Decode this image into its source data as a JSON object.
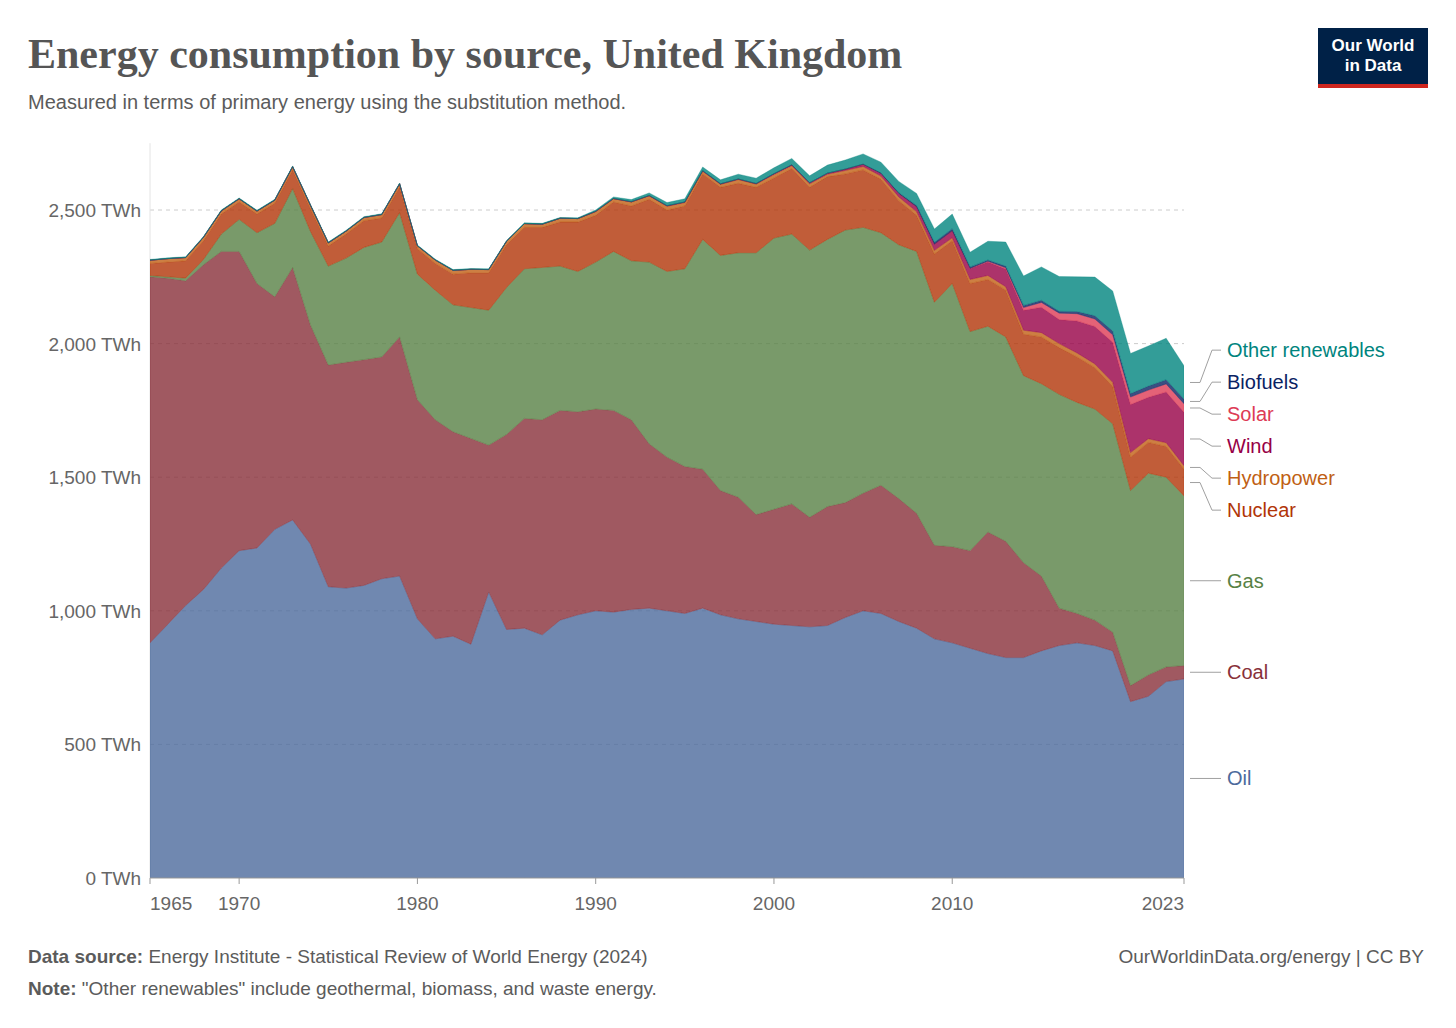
{
  "chart_data": {
    "type": "area",
    "title": "Energy consumption by source, United Kingdom",
    "subtitle": "Measured in terms of primary energy using the substitution method.",
    "source_label": "Data source:",
    "source": "Energy Institute - Statistical Review of World Energy (2024)",
    "note_label": "Note:",
    "note": "\"Other renewables\" include geothermal, biomass, and waste energy.",
    "credit": "OurWorldinData.org/energy | CC BY",
    "logo": "Our World in Data",
    "stacked": true,
    "grid": true,
    "legend": "right",
    "x": [
      1965,
      1966,
      1967,
      1968,
      1969,
      1970,
      1971,
      1972,
      1973,
      1974,
      1975,
      1976,
      1977,
      1978,
      1979,
      1980,
      1981,
      1982,
      1983,
      1984,
      1985,
      1986,
      1987,
      1988,
      1989,
      1990,
      1991,
      1992,
      1993,
      1994,
      1995,
      1996,
      1997,
      1998,
      1999,
      2000,
      2001,
      2002,
      2003,
      2004,
      2005,
      2006,
      2007,
      2008,
      2009,
      2010,
      2011,
      2012,
      2013,
      2014,
      2015,
      2016,
      2017,
      2018,
      2019,
      2020,
      2021,
      2022,
      2023
    ],
    "xlim": [
      1965,
      2023
    ],
    "xticks": [
      1965,
      1970,
      1980,
      1990,
      2000,
      2010,
      2023
    ],
    "ylim": [
      0,
      2750
    ],
    "yticks": [
      {
        "value": 0,
        "label": "0 TWh"
      },
      {
        "value": 500,
        "label": "500 TWh"
      },
      {
        "value": 1000,
        "label": "1,000 TWh"
      },
      {
        "value": 1500,
        "label": "1,500 TWh"
      },
      {
        "value": 2000,
        "label": "2,000 TWh"
      },
      {
        "value": 2500,
        "label": "2,500 TWh"
      }
    ],
    "series": [
      {
        "name": "Oil",
        "color": "#4C6A9C",
        "values": [
          880,
          950,
          1020,
          1080,
          1160,
          1225,
          1235,
          1305,
          1340,
          1250,
          1090,
          1085,
          1095,
          1120,
          1130,
          970,
          895,
          905,
          875,
          1070,
          930,
          935,
          910,
          965,
          985,
          1000,
          995,
          1005,
          1010,
          1000,
          990,
          1010,
          985,
          970,
          960,
          950,
          945,
          940,
          945,
          975,
          1000,
          990,
          960,
          935,
          895,
          880,
          860,
          840,
          825,
          825,
          850,
          870,
          880,
          870,
          850,
          660,
          680,
          735,
          745
        ]
      },
      {
        "name": "Coal",
        "color": "#883039",
        "values": [
          1370,
          1295,
          1215,
          1215,
          1185,
          1120,
          990,
          870,
          945,
          820,
          830,
          845,
          845,
          830,
          895,
          820,
          820,
          765,
          770,
          550,
          730,
          785,
          805,
          785,
          760,
          755,
          755,
          710,
          615,
          575,
          550,
          520,
          465,
          455,
          400,
          430,
          455,
          410,
          445,
          430,
          440,
          480,
          460,
          430,
          350,
          360,
          365,
          455,
          435,
          355,
          280,
          140,
          110,
          95,
          70,
          60,
          80,
          55,
          50
        ]
      },
      {
        "name": "Gas",
        "color": "#578145",
        "values": [
          5,
          5,
          10,
          20,
          65,
          120,
          190,
          275,
          295,
          350,
          370,
          390,
          420,
          430,
          465,
          470,
          485,
          475,
          490,
          505,
          550,
          560,
          570,
          540,
          525,
          550,
          595,
          595,
          680,
          695,
          740,
          860,
          880,
          915,
          980,
          1015,
          1010,
          1000,
          1000,
          1020,
          995,
          945,
          950,
          980,
          910,
          985,
          820,
          770,
          765,
          700,
          720,
          800,
          790,
          790,
          780,
          730,
          755,
          710,
          635
        ]
      },
      {
        "name": "Nuclear",
        "color": "#B13507",
        "values": [
          45,
          55,
          65,
          70,
          75,
          65,
          70,
          75,
          70,
          85,
          75,
          90,
          100,
          90,
          95,
          95,
          100,
          115,
          130,
          140,
          160,
          155,
          150,
          165,
          185,
          175,
          185,
          205,
          235,
          230,
          235,
          245,
          255,
          260,
          245,
          225,
          245,
          235,
          235,
          210,
          215,
          200,
          165,
          135,
          180,
          160,
          180,
          175,
          175,
          155,
          175,
          175,
          170,
          155,
          140,
          125,
          115,
          115,
          100
        ]
      },
      {
        "name": "Hydropower",
        "color": "#C05F14",
        "values": [
          12,
          13,
          12,
          13,
          12,
          12,
          11,
          12,
          12,
          13,
          12,
          11,
          12,
          13,
          13,
          11,
          13,
          14,
          13,
          12,
          13,
          14,
          12,
          14,
          13,
          14,
          12,
          15,
          13,
          14,
          13,
          10,
          11,
          14,
          12,
          13,
          11,
          13,
          9,
          13,
          13,
          12,
          14,
          14,
          14,
          11,
          15,
          15,
          13,
          15,
          16,
          15,
          15,
          14,
          15,
          17,
          14,
          14,
          13
        ]
      },
      {
        "name": "Wind",
        "color": "#970046",
        "values": [
          0,
          0,
          0,
          0,
          0,
          0,
          0,
          0,
          0,
          0,
          0,
          0,
          0,
          0,
          0,
          0,
          0,
          0,
          0,
          0,
          0,
          0,
          0,
          0,
          0,
          1,
          1,
          1,
          1,
          2,
          2,
          2,
          2,
          2,
          2,
          3,
          3,
          4,
          4,
          5,
          8,
          10,
          13,
          18,
          23,
          26,
          40,
          50,
          66,
          75,
          95,
          90,
          120,
          140,
          150,
          180,
          155,
          190,
          200
        ]
      },
      {
        "name": "Solar",
        "color": "#DD3B55",
        "values": [
          0,
          0,
          0,
          0,
          0,
          0,
          0,
          0,
          0,
          0,
          0,
          0,
          0,
          0,
          0,
          0,
          0,
          0,
          0,
          0,
          0,
          0,
          0,
          0,
          0,
          0,
          0,
          0,
          0,
          0,
          0,
          0,
          0,
          0,
          0,
          0,
          0,
          0,
          0,
          0,
          0,
          0,
          0,
          0,
          0,
          0,
          1,
          3,
          5,
          10,
          18,
          24,
          27,
          28,
          28,
          28,
          27,
          30,
          32
        ]
      },
      {
        "name": "Biofuels",
        "color": "#0A2263",
        "values": [
          0,
          0,
          0,
          0,
          0,
          0,
          0,
          0,
          0,
          0,
          0,
          0,
          0,
          0,
          0,
          0,
          0,
          0,
          0,
          0,
          0,
          0,
          0,
          0,
          0,
          0,
          0,
          0,
          0,
          0,
          0,
          0,
          0,
          0,
          0,
          0,
          0,
          0,
          0,
          0,
          1,
          2,
          3,
          5,
          7,
          8,
          6,
          5,
          6,
          8,
          8,
          7,
          8,
          12,
          14,
          13,
          15,
          16,
          17
        ]
      },
      {
        "name": "Other renewables",
        "color": "#00847E",
        "values": [
          3,
          3,
          3,
          3,
          3,
          3,
          3,
          3,
          3,
          3,
          3,
          3,
          3,
          3,
          3,
          3,
          3,
          3,
          3,
          3,
          3,
          3,
          3,
          3,
          3,
          5,
          6,
          8,
          10,
          12,
          12,
          14,
          15,
          18,
          20,
          22,
          24,
          26,
          30,
          34,
          38,
          40,
          42,
          45,
          50,
          55,
          55,
          70,
          90,
          110,
          125,
          130,
          130,
          145,
          150,
          150,
          150,
          155,
          125
        ]
      }
    ]
  }
}
